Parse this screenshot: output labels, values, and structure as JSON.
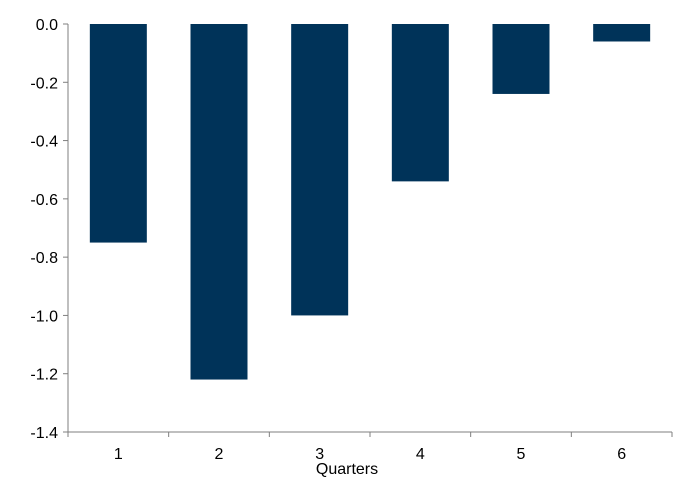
{
  "chart_data": {
    "type": "bar",
    "title": "",
    "xlabel": "Quarters",
    "ylabel": "",
    "categories": [
      "1",
      "2",
      "3",
      "4",
      "5",
      "6"
    ],
    "values": [
      -0.75,
      -1.22,
      -1.0,
      -0.54,
      -0.24,
      -0.06
    ],
    "ylim": [
      -1.4,
      0.0
    ],
    "yticks": [
      "0.0",
      "-0.2",
      "-0.4",
      "-0.6",
      "-0.8",
      "-1.0",
      "-1.2",
      "-1.4"
    ],
    "grid": false,
    "legend": "none",
    "bar_color": "#003359"
  }
}
